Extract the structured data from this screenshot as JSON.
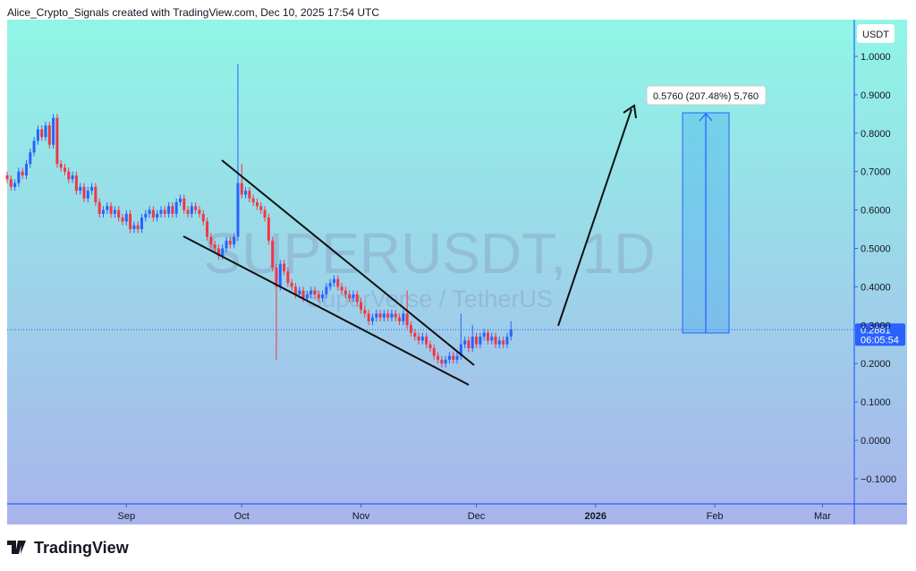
{
  "header": "Alice_Crypto_Signals created with TradingView.com, Dec 10, 2025 17:54 UTC",
  "footer": "TradingView",
  "chart_data": {
    "type": "candlestick",
    "watermark": "SUPERUSDT, 1D",
    "watermark_subtitle": "SuperVerse / TetherUS",
    "axis_unit": "USDT",
    "last_price_label": "0.2881",
    "countdown": "06:05:54",
    "annotations": [
      "0.5760 (207.48%) 5,760"
    ],
    "up_color": "#2962ff",
    "down_color": "#f23645",
    "xlim": [
      0,
      219.8
    ],
    "xticks": [
      {
        "value": 31,
        "label": "Sep"
      },
      {
        "value": 61,
        "label": "Oct"
      },
      {
        "value": 92,
        "label": "Nov"
      },
      {
        "value": 122,
        "label": "Dec"
      },
      {
        "value": 153,
        "label": "2026"
      },
      {
        "value": 184,
        "label": "Feb"
      },
      {
        "value": 212,
        "label": "Mar"
      }
    ],
    "ylim": [
      -0.1655,
      1.0956
    ],
    "yticks": [
      {
        "value": -0.1,
        "label": "−0.1000"
      },
      {
        "value": 0,
        "label": "0.0000"
      },
      {
        "value": 0.1,
        "label": "0.1000"
      },
      {
        "value": 0.2,
        "label": "0.2000"
      },
      {
        "value": 0.3,
        "label": "0.3000"
      },
      {
        "value": 0.4,
        "label": "0.4000"
      },
      {
        "value": 0.5,
        "label": "0.5000"
      },
      {
        "value": 0.6,
        "label": "0.6000"
      },
      {
        "value": 0.7,
        "label": "0.7000"
      },
      {
        "value": 0.8,
        "label": "0.8000"
      },
      {
        "value": 0.9,
        "label": "0.9000"
      },
      {
        "value": 1,
        "label": "1.0000"
      }
    ],
    "x": [
      0,
      1,
      2,
      3,
      4,
      5,
      6,
      7,
      8,
      9,
      10,
      11,
      12,
      13,
      14,
      15,
      16,
      17,
      18,
      19,
      20,
      21,
      22,
      23,
      24,
      25,
      26,
      27,
      28,
      29,
      30,
      31,
      32,
      33,
      34,
      35,
      36,
      37,
      38,
      39,
      40,
      41,
      42,
      43,
      44,
      45,
      46,
      47,
      48,
      49,
      50,
      51,
      52,
      53,
      54,
      55,
      56,
      57,
      58,
      59,
      60,
      61,
      62,
      63,
      64,
      65,
      66,
      67,
      68,
      69,
      70,
      71,
      72,
      73,
      74,
      75,
      76,
      77,
      78,
      79,
      80,
      81,
      82,
      83,
      84,
      85,
      86,
      87,
      88,
      89,
      90,
      91,
      92,
      93,
      94,
      95,
      96,
      97,
      98,
      99,
      100,
      101,
      102,
      103,
      104,
      105,
      106,
      107,
      108,
      109,
      110,
      111,
      112,
      113,
      114,
      115,
      116,
      117,
      118,
      119,
      120,
      121,
      122,
      123,
      124,
      125,
      126,
      127,
      128,
      129,
      130,
      131
    ],
    "open": [
      0.69,
      0.68,
      0.66,
      0.67,
      0.7,
      0.69,
      0.72,
      0.75,
      0.78,
      0.81,
      0.79,
      0.82,
      0.77,
      0.84,
      0.72,
      0.71,
      0.7,
      0.68,
      0.69,
      0.65,
      0.66,
      0.63,
      0.65,
      0.66,
      0.62,
      0.59,
      0.6,
      0.61,
      0.59,
      0.6,
      0.58,
      0.57,
      0.59,
      0.55,
      0.56,
      0.55,
      0.58,
      0.59,
      0.6,
      0.58,
      0.59,
      0.6,
      0.59,
      0.61,
      0.59,
      0.62,
      0.63,
      0.6,
      0.59,
      0.61,
      0.6,
      0.59,
      0.57,
      0.53,
      0.51,
      0.5,
      0.48,
      0.5,
      0.52,
      0.51,
      0.53,
      0.67,
      0.64,
      0.65,
      0.63,
      0.62,
      0.61,
      0.6,
      0.58,
      0.52,
      0.45,
      0.4,
      0.46,
      0.44,
      0.41,
      0.4,
      0.38,
      0.39,
      0.37,
      0.38,
      0.39,
      0.38,
      0.37,
      0.38,
      0.4,
      0.41,
      0.42,
      0.4,
      0.39,
      0.38,
      0.37,
      0.38,
      0.36,
      0.34,
      0.33,
      0.31,
      0.32,
      0.33,
      0.32,
      0.33,
      0.32,
      0.33,
      0.32,
      0.31,
      0.33,
      0.3,
      0.28,
      0.27,
      0.26,
      0.27,
      0.25,
      0.24,
      0.22,
      0.21,
      0.2,
      0.21,
      0.22,
      0.21,
      0.22,
      0.25,
      0.26,
      0.24,
      0.27,
      0.25,
      0.27,
      0.28,
      0.26,
      0.27,
      0.25,
      0.26,
      0.25,
      0.27
    ],
    "high": [
      0.7,
      0.69,
      0.68,
      0.71,
      0.71,
      0.73,
      0.76,
      0.79,
      0.82,
      0.82,
      0.83,
      0.83,
      0.85,
      0.85,
      0.73,
      0.72,
      0.71,
      0.7,
      0.7,
      0.67,
      0.67,
      0.66,
      0.67,
      0.67,
      0.63,
      0.61,
      0.62,
      0.62,
      0.61,
      0.61,
      0.59,
      0.6,
      0.6,
      0.57,
      0.57,
      0.59,
      0.6,
      0.61,
      0.61,
      0.6,
      0.61,
      0.61,
      0.62,
      0.62,
      0.63,
      0.64,
      0.64,
      0.61,
      0.62,
      0.62,
      0.61,
      0.6,
      0.58,
      0.54,
      0.52,
      0.51,
      0.51,
      0.53,
      0.53,
      0.54,
      0.98,
      0.72,
      0.66,
      0.66,
      0.64,
      0.63,
      0.62,
      0.61,
      0.59,
      0.53,
      0.46,
      0.47,
      0.47,
      0.45,
      0.42,
      0.41,
      0.4,
      0.4,
      0.39,
      0.4,
      0.4,
      0.39,
      0.39,
      0.41,
      0.42,
      0.43,
      0.43,
      0.41,
      0.4,
      0.39,
      0.39,
      0.39,
      0.37,
      0.35,
      0.34,
      0.33,
      0.34,
      0.34,
      0.34,
      0.34,
      0.34,
      0.34,
      0.33,
      0.34,
      0.39,
      0.31,
      0.29,
      0.28,
      0.28,
      0.28,
      0.26,
      0.25,
      0.23,
      0.22,
      0.22,
      0.23,
      0.23,
      0.23,
      0.33,
      0.27,
      0.27,
      0.3,
      0.28,
      0.28,
      0.29,
      0.29,
      0.28,
      0.28,
      0.27,
      0.27,
      0.28,
      0.31
    ],
    "low": [
      0.67,
      0.65,
      0.65,
      0.66,
      0.68,
      0.68,
      0.71,
      0.74,
      0.77,
      0.78,
      0.78,
      0.76,
      0.76,
      0.71,
      0.7,
      0.69,
      0.67,
      0.67,
      0.64,
      0.64,
      0.62,
      0.62,
      0.64,
      0.61,
      0.58,
      0.58,
      0.59,
      0.58,
      0.58,
      0.57,
      0.56,
      0.56,
      0.54,
      0.54,
      0.54,
      0.54,
      0.57,
      0.58,
      0.57,
      0.57,
      0.58,
      0.58,
      0.58,
      0.58,
      0.58,
      0.61,
      0.59,
      0.58,
      0.58,
      0.59,
      0.58,
      0.56,
      0.52,
      0.5,
      0.49,
      0.47,
      0.47,
      0.49,
      0.5,
      0.5,
      0.52,
      0.63,
      0.63,
      0.62,
      0.61,
      0.6,
      0.59,
      0.57,
      0.51,
      0.44,
      0.21,
      0.39,
      0.43,
      0.4,
      0.39,
      0.37,
      0.37,
      0.36,
      0.36,
      0.37,
      0.37,
      0.36,
      0.36,
      0.37,
      0.39,
      0.4,
      0.39,
      0.38,
      0.37,
      0.36,
      0.36,
      0.35,
      0.33,
      0.32,
      0.3,
      0.3,
      0.31,
      0.31,
      0.31,
      0.31,
      0.31,
      0.31,
      0.3,
      0.3,
      0.29,
      0.27,
      0.26,
      0.25,
      0.25,
      0.24,
      0.23,
      0.21,
      0.2,
      0.19,
      0.19,
      0.2,
      0.2,
      0.2,
      0.21,
      0.24,
      0.23,
      0.23,
      0.24,
      0.24,
      0.26,
      0.25,
      0.25,
      0.24,
      0.24,
      0.24,
      0.24,
      0.26
    ],
    "close": [
      0.68,
      0.66,
      0.67,
      0.7,
      0.69,
      0.72,
      0.75,
      0.78,
      0.81,
      0.79,
      0.82,
      0.77,
      0.84,
      0.72,
      0.71,
      0.7,
      0.68,
      0.69,
      0.65,
      0.66,
      0.63,
      0.65,
      0.66,
      0.62,
      0.59,
      0.6,
      0.61,
      0.59,
      0.6,
      0.58,
      0.57,
      0.59,
      0.55,
      0.56,
      0.55,
      0.58,
      0.59,
      0.6,
      0.58,
      0.59,
      0.6,
      0.59,
      0.61,
      0.59,
      0.62,
      0.63,
      0.6,
      0.59,
      0.61,
      0.6,
      0.59,
      0.57,
      0.53,
      0.51,
      0.5,
      0.48,
      0.5,
      0.52,
      0.51,
      0.53,
      0.67,
      0.64,
      0.65,
      0.63,
      0.62,
      0.61,
      0.6,
      0.58,
      0.52,
      0.45,
      0.4,
      0.46,
      0.44,
      0.41,
      0.4,
      0.38,
      0.39,
      0.37,
      0.38,
      0.39,
      0.38,
      0.37,
      0.38,
      0.4,
      0.41,
      0.42,
      0.4,
      0.39,
      0.38,
      0.37,
      0.38,
      0.36,
      0.34,
      0.33,
      0.31,
      0.32,
      0.33,
      0.32,
      0.33,
      0.32,
      0.33,
      0.32,
      0.31,
      0.33,
      0.3,
      0.28,
      0.27,
      0.26,
      0.27,
      0.25,
      0.24,
      0.22,
      0.21,
      0.2,
      0.21,
      0.22,
      0.21,
      0.22,
      0.25,
      0.26,
      0.24,
      0.27,
      0.25,
      0.27,
      0.28,
      0.26,
      0.27,
      0.25,
      0.26,
      0.25,
      0.27,
      0.2881
    ]
  }
}
